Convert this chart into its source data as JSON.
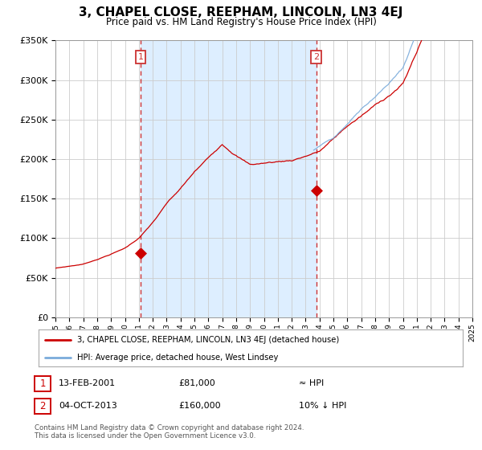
{
  "title": "3, CHAPEL CLOSE, REEPHAM, LINCOLN, LN3 4EJ",
  "subtitle": "Price paid vs. HM Land Registry's House Price Index (HPI)",
  "legend_line1": "3, CHAPEL CLOSE, REEPHAM, LINCOLN, LN3 4EJ (detached house)",
  "legend_line2": "HPI: Average price, detached house, West Lindsey",
  "annotation1_date": "13-FEB-2001",
  "annotation1_price": "£81,000",
  "annotation1_hpi": "≈ HPI",
  "annotation2_date": "04-OCT-2013",
  "annotation2_price": "£160,000",
  "annotation2_hpi": "10% ↓ HPI",
  "footnote1": "Contains HM Land Registry data © Crown copyright and database right 2024.",
  "footnote2": "This data is licensed under the Open Government Licence v3.0.",
  "sale1_year": 2001.12,
  "sale1_price": 81000,
  "sale2_year": 2013.76,
  "sale2_price": 160000,
  "hpi_start_year": 2013.5,
  "plot_color_property": "#cc0000",
  "plot_color_hpi": "#7aabdb",
  "shaded_color": "#ddeeff",
  "vline_color": "#cc3333",
  "grid_color": "#cccccc",
  "xmin": 1995,
  "xmax": 2025,
  "ymin": 0,
  "ymax": 350000,
  "yticks": [
    0,
    50000,
    100000,
    150000,
    200000,
    250000,
    300000,
    350000
  ]
}
